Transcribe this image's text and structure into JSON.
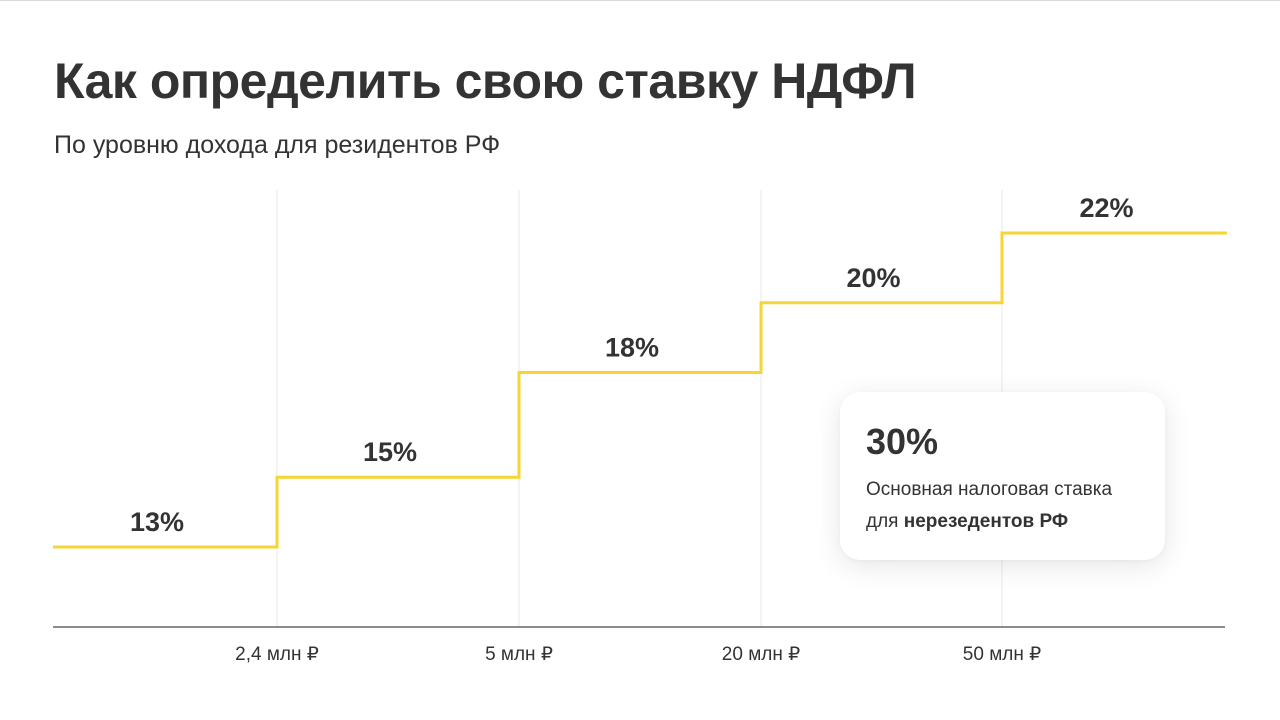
{
  "title": "Как определить свою ставку НДФЛ",
  "subtitle": "По уровню дохода для резидентов РФ",
  "colors": {
    "line": "#f5d633",
    "grid": "#e8e8e8",
    "axis": "#666666",
    "text": "#333333"
  },
  "chart_data": {
    "type": "line",
    "step": true,
    "categories": [
      "",
      "2,4 млн ₽",
      "5 млн ₽",
      "20 млн ₽",
      "50 млн ₽"
    ],
    "x_tick_labels": [
      "2,4 млн ₽",
      "5 млн ₽",
      "20 млн ₽",
      "50 млн ₽"
    ],
    "series": [
      {
        "values": [
          13,
          15,
          18,
          20,
          22
        ],
        "labels": [
          "13%",
          "15%",
          "18%",
          "20%",
          "22%"
        ]
      }
    ],
    "grid": "vertical",
    "legend": "none",
    "title": "Как определить свою ставку НДФЛ",
    "subtitle": "По уровню дохода для резидентов РФ"
  },
  "callout": {
    "rate": "30%",
    "line1": "Основная налоговая ставка",
    "line2_prefix": "для ",
    "line2_bold": "нерезедентов РФ"
  }
}
